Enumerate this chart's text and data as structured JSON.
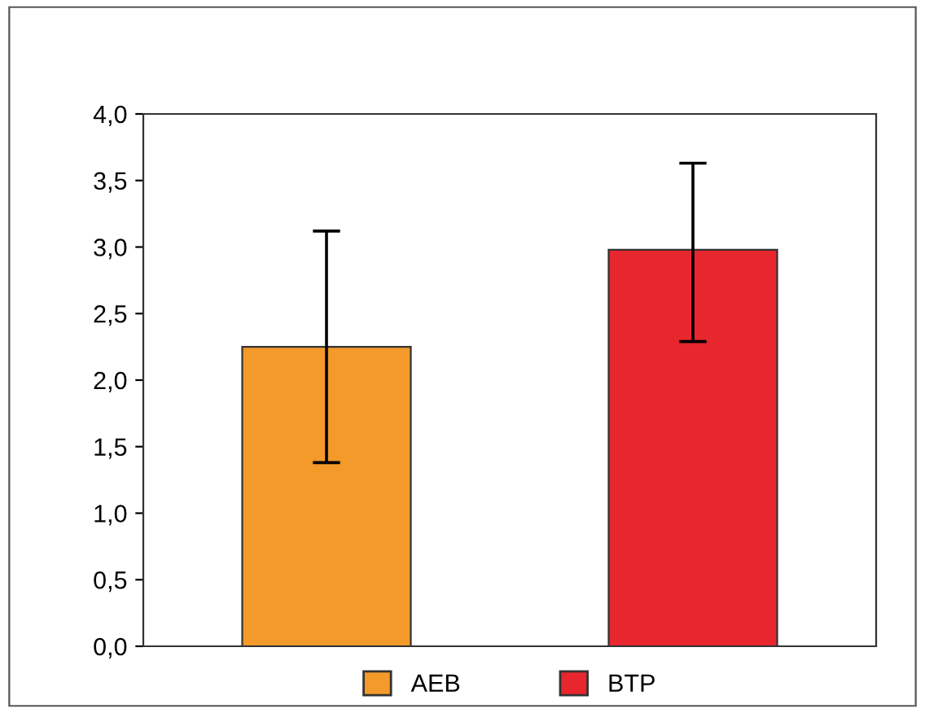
{
  "chart_data": {
    "type": "bar",
    "categories": [
      null,
      null
    ],
    "series": [
      {
        "name": "AEB",
        "color": "#f39a2a",
        "values": [
          2.25,
          null
        ],
        "errors": [
          0.87,
          null
        ]
      },
      {
        "name": "BTP",
        "color": "#e8262e",
        "values": [
          null,
          2.98
        ],
        "errors": [
          null,
          [
            2.29,
            3.63
          ]
        ]
      }
    ],
    "ylim": [
      0,
      4
    ],
    "yticks": [
      {
        "value": 0,
        "label": "0,0"
      },
      {
        "value": 0.5,
        "label": "0,5"
      },
      {
        "value": 1,
        "label": "1,0"
      },
      {
        "value": 1.5,
        "label": "1,5"
      },
      {
        "value": 2,
        "label": "2,0"
      },
      {
        "value": 2.5,
        "label": "2,5"
      },
      {
        "value": 3,
        "label": "3,0"
      },
      {
        "value": 3.5,
        "label": "3,5"
      },
      {
        "value": 4,
        "label": "4,0"
      }
    ],
    "grid": false,
    "legend": "bottom"
  }
}
